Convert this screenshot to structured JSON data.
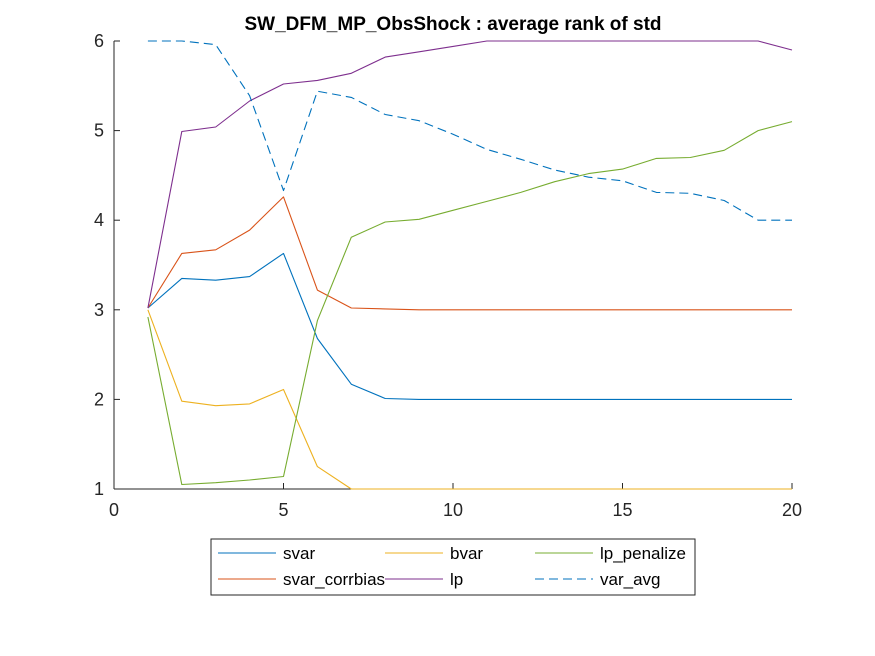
{
  "chart_data": {
    "type": "line",
    "title": "SW_DFM_MP_ObsShock : average rank of std",
    "xlabel": "",
    "ylabel": "",
    "xlim": [
      0,
      20
    ],
    "ylim": [
      1,
      6
    ],
    "xticks": [
      0,
      5,
      10,
      15,
      20
    ],
    "yticks": [
      1,
      2,
      3,
      4,
      5,
      6
    ],
    "grid": false,
    "legend_position": "bottom",
    "x": [
      1,
      2,
      3,
      4,
      5,
      6,
      7,
      8,
      9,
      10,
      11,
      12,
      13,
      14,
      15,
      16,
      17,
      18,
      19,
      20
    ],
    "series": [
      {
        "name": "svar",
        "color": "#0072BD",
        "dash": false,
        "values": [
          3.02,
          3.35,
          3.33,
          3.37,
          3.63,
          2.68,
          2.17,
          2.01,
          2.0,
          2.0,
          2.0,
          2.0,
          2.0,
          2.0,
          2.0,
          2.0,
          2.0,
          2.0,
          2.0,
          2.0
        ]
      },
      {
        "name": "svar_corrbias",
        "color": "#D95319",
        "dash": false,
        "values": [
          3.02,
          3.63,
          3.67,
          3.89,
          4.26,
          3.22,
          3.02,
          3.01,
          3.0,
          3.0,
          3.0,
          3.0,
          3.0,
          3.0,
          3.0,
          3.0,
          3.0,
          3.0,
          3.0,
          3.0
        ]
      },
      {
        "name": "bvar",
        "color": "#EDB120",
        "dash": false,
        "values": [
          3.0,
          1.98,
          1.93,
          1.95,
          2.11,
          1.25,
          1.0,
          1.0,
          1.0,
          1.0,
          1.0,
          1.0,
          1.0,
          1.0,
          1.0,
          1.0,
          1.0,
          1.0,
          1.0,
          1.0
        ]
      },
      {
        "name": "lp",
        "color": "#7E2F8E",
        "dash": false,
        "values": [
          3.02,
          4.99,
          5.04,
          5.33,
          5.52,
          5.56,
          5.64,
          5.82,
          5.88,
          5.94,
          6.0,
          6.0,
          6.0,
          6.0,
          6.0,
          6.0,
          6.0,
          6.0,
          6.0,
          5.9
        ]
      },
      {
        "name": "lp_penalize",
        "color": "#77AC30",
        "dash": false,
        "values": [
          2.92,
          1.05,
          1.07,
          1.1,
          1.14,
          2.88,
          3.81,
          3.98,
          4.01,
          4.11,
          4.21,
          4.31,
          4.43,
          4.52,
          4.57,
          4.69,
          4.7,
          4.78,
          5.0,
          5.1
        ]
      },
      {
        "name": "var_avg",
        "color": "#0072BD",
        "dash": true,
        "values": [
          6.0,
          6.0,
          5.96,
          5.39,
          4.33,
          5.44,
          5.37,
          5.18,
          5.11,
          4.96,
          4.79,
          4.68,
          4.56,
          4.48,
          4.44,
          4.31,
          4.3,
          4.22,
          4.0,
          4.0
        ]
      }
    ],
    "legend": {
      "columns": 3,
      "order": [
        "svar",
        "bvar",
        "lp_penalize",
        "svar_corrbias",
        "lp",
        "var_avg"
      ]
    }
  }
}
